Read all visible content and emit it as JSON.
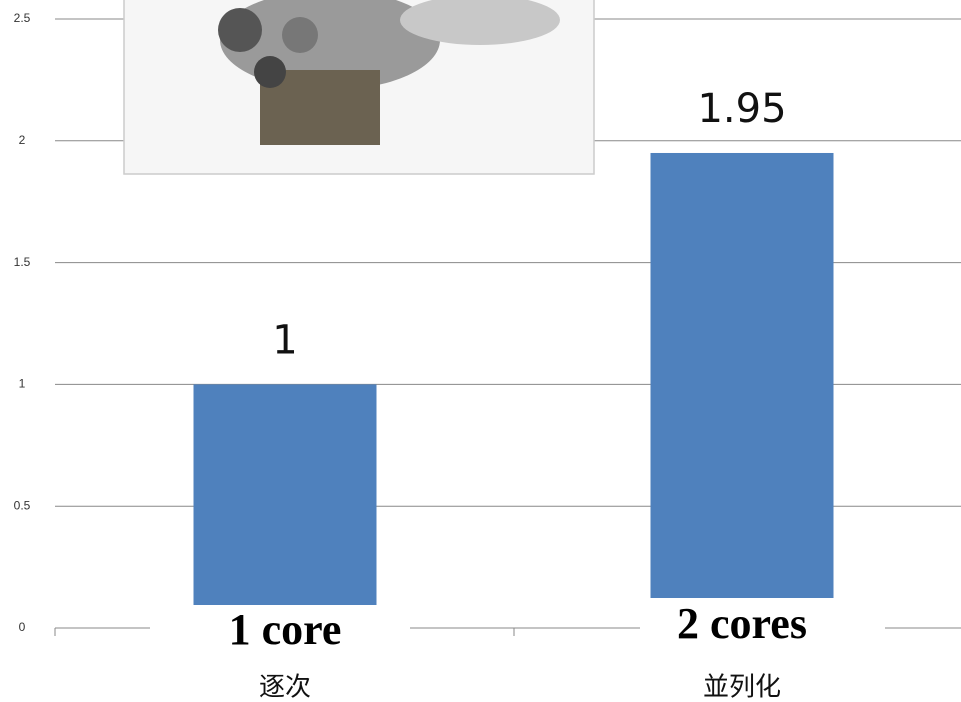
{
  "chart_data": {
    "type": "bar",
    "categories": [
      "逐次",
      "並列化"
    ],
    "values": [
      1,
      1.95
    ],
    "color": "#4f81bd",
    "ylim": [
      0,
      2.5
    ],
    "yticks": [
      0,
      0.5,
      1,
      1.5,
      2,
      2.5
    ],
    "grid": true,
    "annotations": [
      "1 core",
      "2 cores"
    ]
  }
}
